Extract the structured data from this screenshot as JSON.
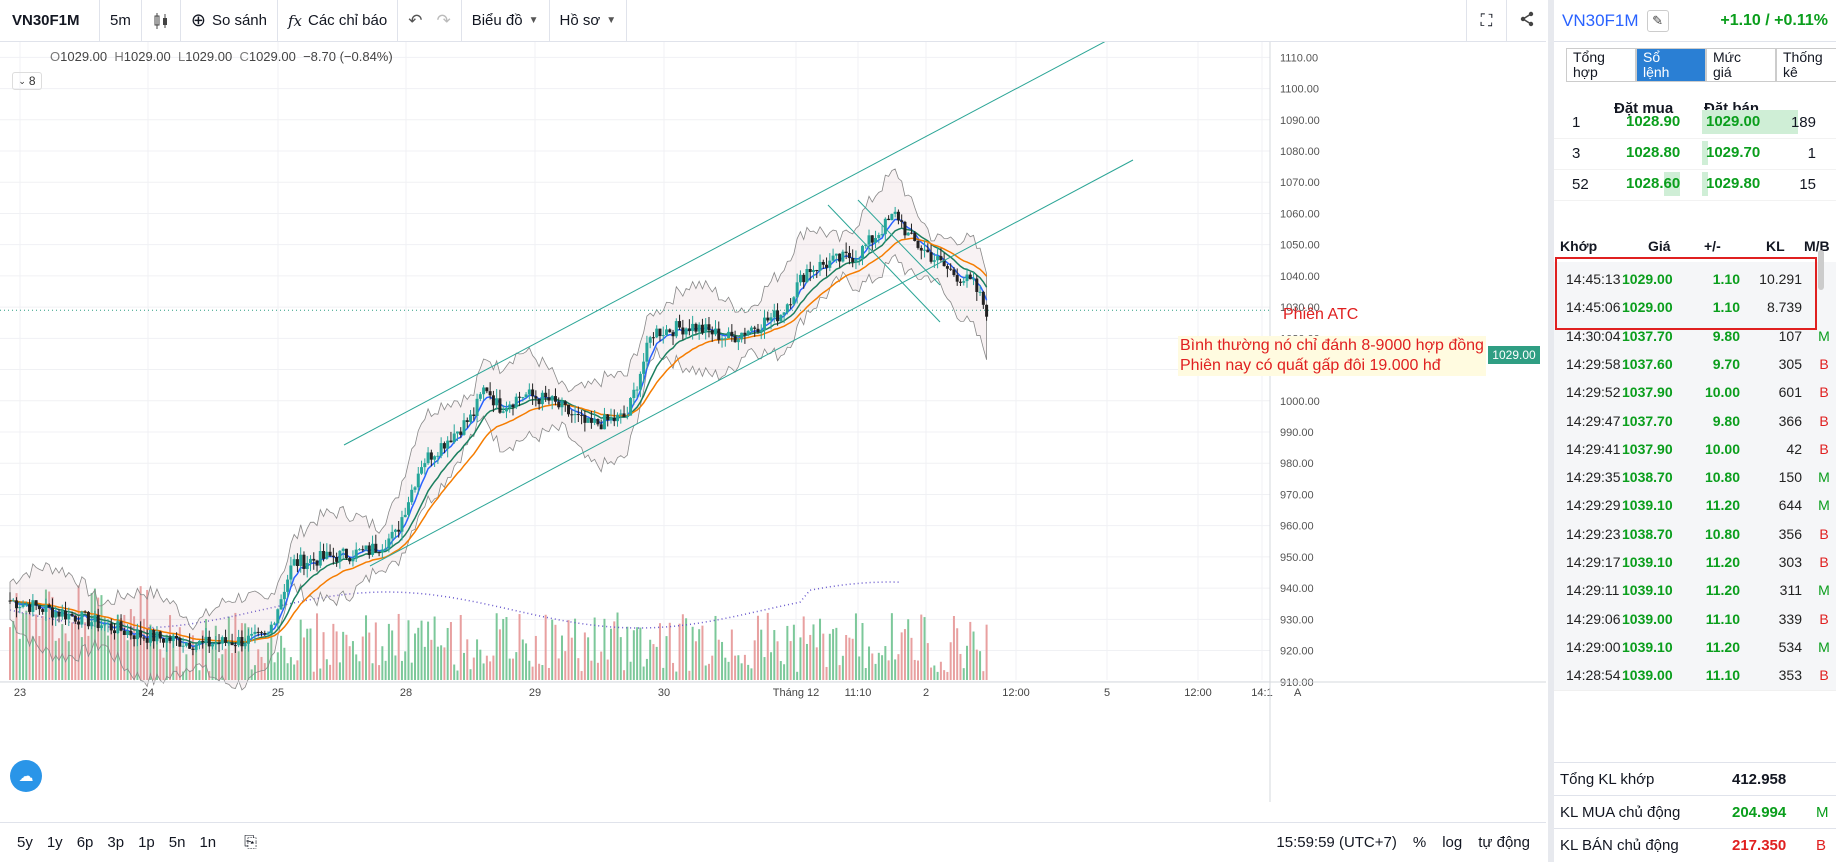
{
  "toolbar": {
    "symbol": "VN30F1M",
    "interval": "5m",
    "compare": "So sánh",
    "indicators": "Các chỉ báo",
    "chart_menu": "Biểu đồ",
    "profile_menu": "Hồ sơ"
  },
  "legend": {
    "o_label": "O",
    "o": "1029.00",
    "h_label": "H",
    "h": "1029.00",
    "l_label": "L",
    "l": "1029.00",
    "c_label": "C",
    "c": "1029.00",
    "change": "−8.70 (−0.84%)",
    "indicator_count": "8"
  },
  "annotations": {
    "atc": "Phiên ATC",
    "note1": "Bình thường nó chỉ đánh 8-9000 hợp đồng",
    "note2": "Phiên nay có quất gấp đôi 19.000 hđ"
  },
  "price_label": "1029.00",
  "chart_data": {
    "type": "candlestick",
    "symbol": "VN30F1M",
    "y_ticks": [
      "1110.00",
      "1100.00",
      "1090.00",
      "1080.00",
      "1070.00",
      "1060.00",
      "1050.00",
      "1040.00",
      "1030.00",
      "1020.00",
      "1010.00",
      "1000.00",
      "990.00",
      "980.00",
      "970.00",
      "960.00",
      "950.00",
      "940.00",
      "930.00",
      "920.00",
      "910.00"
    ],
    "ylim": [
      908,
      1113
    ],
    "x_ticks": [
      "23",
      "24",
      "25",
      "28",
      "29",
      "30",
      "Tháng 12",
      "11:10",
      "2",
      "12:00",
      "5",
      "12:00",
      "14:1"
    ],
    "last_price": 1029.0,
    "close_path": [
      {
        "d": 0,
        "p": 936
      },
      {
        "d": 0.5,
        "p": 931
      },
      {
        "d": 1,
        "p": 925
      },
      {
        "d": 1.5,
        "p": 922
      },
      {
        "d": 2,
        "p": 924
      },
      {
        "d": 2.2,
        "p": 948
      },
      {
        "d": 2.5,
        "p": 950
      },
      {
        "d": 2.8,
        "p": 952
      },
      {
        "d": 3,
        "p": 957
      },
      {
        "d": 3.2,
        "p": 980
      },
      {
        "d": 3.6,
        "p": 995
      },
      {
        "d": 3.7,
        "p": 1005
      },
      {
        "d": 3.8,
        "p": 998
      },
      {
        "d": 4,
        "p": 1002
      },
      {
        "d": 4.2,
        "p": 1000
      },
      {
        "d": 4.5,
        "p": 992
      },
      {
        "d": 4.8,
        "p": 995
      },
      {
        "d": 5,
        "p": 1022
      },
      {
        "d": 5.3,
        "p": 1024
      },
      {
        "d": 5.6,
        "p": 1020
      },
      {
        "d": 6,
        "p": 1028
      },
      {
        "d": 6.2,
        "p": 1042
      },
      {
        "d": 6.6,
        "p": 1047
      },
      {
        "d": 6.9,
        "p": 1060
      },
      {
        "d": 7,
        "p": 1052
      },
      {
        "d": 7.3,
        "p": 1042
      },
      {
        "d": 7.5,
        "p": 1037
      },
      {
        "d": 7.6,
        "p": 1029
      }
    ],
    "grid": true
  },
  "bottom": {
    "ranges": [
      "5y",
      "1y",
      "6p",
      "3p",
      "1p",
      "5n",
      "1n"
    ],
    "time": "15:59:59 (UTC+7)",
    "percent": "%",
    "log": "log",
    "auto": "tự động"
  },
  "panel": {
    "symbol": "VN30F1M",
    "change": "+1.10 / +0.11%",
    "tabs": [
      {
        "l1": "Tổng",
        "l2": "hợp"
      },
      {
        "l1": "Sổ",
        "l2": "lệnh"
      },
      {
        "l1": "Mức",
        "l2": "giá"
      },
      {
        "l1": "Thống",
        "l2": "kê"
      }
    ],
    "bid_header": "Đặt mua",
    "ask_header": "Đặt bán",
    "orderbook": [
      {
        "bq": "1",
        "bid": "1028.90",
        "ask": "1029.00",
        "aq": "189"
      },
      {
        "bq": "3",
        "bid": "1028.80",
        "ask": "1029.70",
        "aq": "1"
      },
      {
        "bq": "52",
        "bid": "1028.60",
        "ask": "1029.80",
        "aq": "15"
      }
    ],
    "match_headers": {
      "time": "Khớp",
      "price": "Giá",
      "chg": "+/-",
      "vol": "KL",
      "side": "M/B"
    },
    "matches": [
      {
        "t": "14:45:13",
        "p": "1029.00",
        "c": "1.10",
        "v": "10.291",
        "s": ""
      },
      {
        "t": "14:45:06",
        "p": "1029.00",
        "c": "1.10",
        "v": "8.739",
        "s": ""
      },
      {
        "t": "14:30:04",
        "p": "1037.70",
        "c": "9.80",
        "v": "107",
        "s": "M"
      },
      {
        "t": "14:29:58",
        "p": "1037.60",
        "c": "9.70",
        "v": "305",
        "s": "B"
      },
      {
        "t": "14:29:52",
        "p": "1037.90",
        "c": "10.00",
        "v": "601",
        "s": "B"
      },
      {
        "t": "14:29:47",
        "p": "1037.70",
        "c": "9.80",
        "v": "366",
        "s": "B"
      },
      {
        "t": "14:29:41",
        "p": "1037.90",
        "c": "10.00",
        "v": "42",
        "s": "B"
      },
      {
        "t": "14:29:35",
        "p": "1038.70",
        "c": "10.80",
        "v": "150",
        "s": "M"
      },
      {
        "t": "14:29:29",
        "p": "1039.10",
        "c": "11.20",
        "v": "644",
        "s": "M"
      },
      {
        "t": "14:29:23",
        "p": "1038.70",
        "c": "10.80",
        "v": "356",
        "s": "B"
      },
      {
        "t": "14:29:17",
        "p": "1039.10",
        "c": "11.20",
        "v": "303",
        "s": "B"
      },
      {
        "t": "14:29:11",
        "p": "1039.10",
        "c": "11.20",
        "v": "311",
        "s": "M"
      },
      {
        "t": "14:29:06",
        "p": "1039.00",
        "c": "11.10",
        "v": "339",
        "s": "B"
      },
      {
        "t": "14:29:00",
        "p": "1039.10",
        "c": "11.20",
        "v": "534",
        "s": "M"
      },
      {
        "t": "14:28:54",
        "p": "1039.00",
        "c": "11.10",
        "v": "353",
        "s": "B"
      }
    ],
    "summary": [
      {
        "label": "Tổng KL khớp",
        "value": "412.958",
        "side": "",
        "color": "#131722"
      },
      {
        "label": "KL MUA chủ động",
        "value": "204.994",
        "side": "M",
        "color": "#0a9e1c"
      },
      {
        "label": "KL BÁN chủ động",
        "value": "217.350",
        "side": "B",
        "color": "#e02020"
      }
    ]
  },
  "colors": {
    "up": "#26a69a",
    "down": "#222222",
    "ema_fast": "#2962ff",
    "ema_mid": "#1b7f5f",
    "ema_slow": "#f57c00",
    "channel": "#2ba596",
    "bands": "#888888",
    "volume_up": "#7cc89a",
    "volume_down": "#e8a0a0",
    "vwap": "#6a5acd",
    "buy": "#0a9e1c",
    "sell": "#e02020",
    "accent": "#2962ff"
  }
}
